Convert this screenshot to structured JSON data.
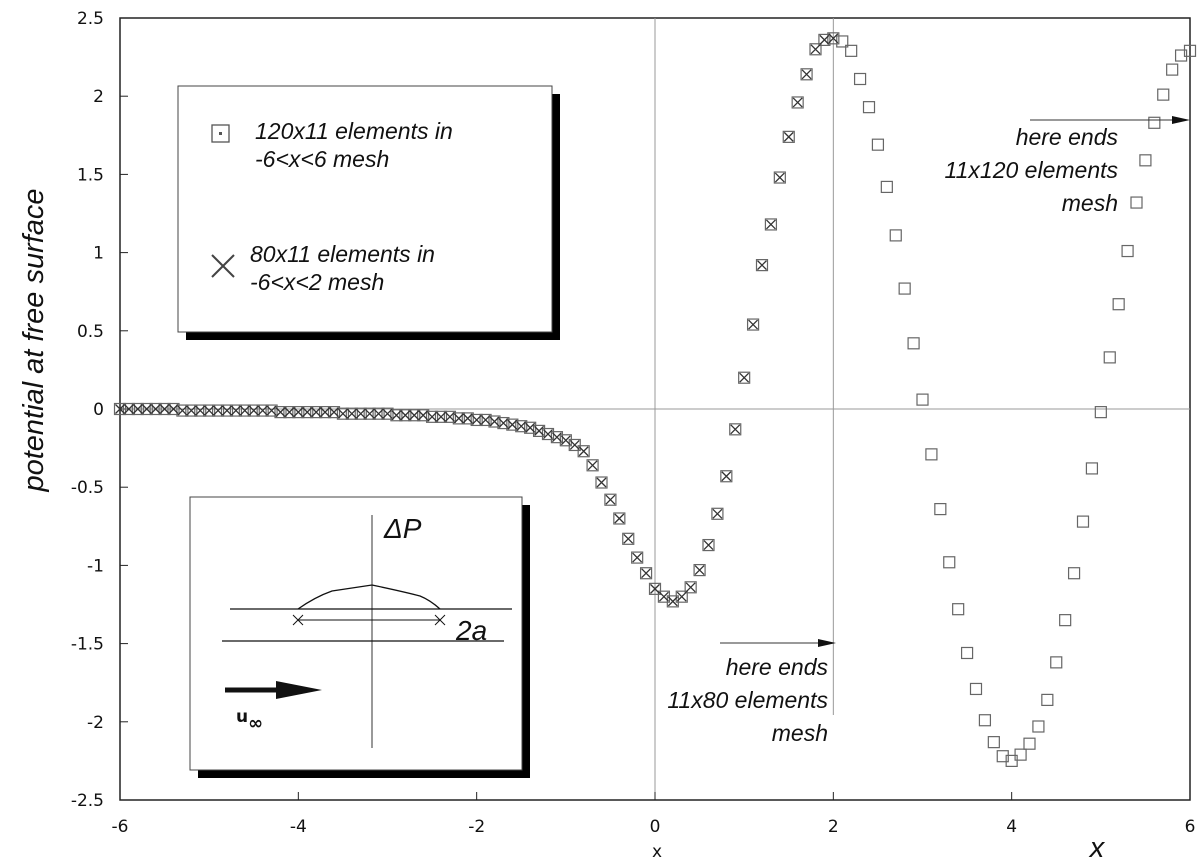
{
  "chart_data": {
    "type": "scatter",
    "ylabel": "potential at free surface",
    "xlabel_small": "x",
    "xlabel_large": "x",
    "xlim": [
      -6,
      6
    ],
    "ylim": [
      -2.5,
      2.5
    ],
    "x_ticks": [
      "-6",
      "-4",
      "-2",
      "0",
      "2",
      "4",
      "6"
    ],
    "y_ticks": [
      "2.5",
      "2",
      "1.5",
      "1",
      "0.5",
      "0",
      "-0.5",
      "-1",
      "-1.5",
      "-2",
      "-2.5"
    ],
    "grid": "reference lines at x=0 and y=0",
    "legend": {
      "placement": "top-left",
      "entries": [
        {
          "marker": "square",
          "line1": "120x11 elements in",
          "line2": "-6<x<6 mesh"
        },
        {
          "marker": "cross",
          "line1": "80x11 elements in",
          "line2": "-6<x<2 mesh"
        }
      ]
    },
    "series": [
      {
        "name": "120x11 elements in -6<x<6 mesh",
        "marker": "square",
        "x": [
          -6.0,
          -5.9,
          -5.8,
          -5.7,
          -5.6,
          -5.5,
          -5.4,
          -5.3,
          -5.2,
          -5.1,
          -5.0,
          -4.9,
          -4.8,
          -4.7,
          -4.6,
          -4.5,
          -4.4,
          -4.3,
          -4.2,
          -4.1,
          -4.0,
          -3.9,
          -3.8,
          -3.7,
          -3.6,
          -3.5,
          -3.4,
          -3.3,
          -3.2,
          -3.1,
          -3.0,
          -2.9,
          -2.8,
          -2.7,
          -2.6,
          -2.5,
          -2.4,
          -2.3,
          -2.2,
          -2.1,
          -2.0,
          -1.9,
          -1.8,
          -1.7,
          -1.6,
          -1.5,
          -1.4,
          -1.3,
          -1.2,
          -1.1,
          -1.0,
          -0.9,
          -0.8,
          -0.7,
          -0.6,
          -0.5,
          -0.4,
          -0.3,
          -0.2,
          -0.1,
          0.0,
          0.1,
          0.2,
          0.3,
          0.4,
          0.5,
          0.6,
          0.7,
          0.8,
          0.9,
          1.0,
          1.1,
          1.2,
          1.3,
          1.4,
          1.5,
          1.6,
          1.7,
          1.8,
          1.9,
          2.0,
          2.1,
          2.2,
          2.3,
          2.4,
          2.5,
          2.6,
          2.7,
          2.8,
          2.9,
          3.0,
          3.1,
          3.2,
          3.3,
          3.4,
          3.5,
          3.6,
          3.7,
          3.8,
          3.9,
          4.0,
          4.1,
          4.2,
          4.3,
          4.4,
          4.5,
          4.6,
          4.7,
          4.8,
          4.9,
          5.0,
          5.1,
          5.2,
          5.3,
          5.4,
          5.5,
          5.6,
          5.7,
          5.8,
          5.9,
          6.0
        ],
        "y": [
          0.0,
          0.0,
          0.0,
          0.0,
          0.0,
          0.0,
          0.0,
          -0.01,
          -0.01,
          -0.01,
          -0.01,
          -0.01,
          -0.01,
          -0.01,
          -0.01,
          -0.01,
          -0.01,
          -0.01,
          -0.02,
          -0.02,
          -0.02,
          -0.02,
          -0.02,
          -0.02,
          -0.02,
          -0.03,
          -0.03,
          -0.03,
          -0.03,
          -0.03,
          -0.03,
          -0.04,
          -0.04,
          -0.04,
          -0.04,
          -0.05,
          -0.05,
          -0.05,
          -0.06,
          -0.06,
          -0.07,
          -0.07,
          -0.08,
          -0.09,
          -0.1,
          -0.11,
          -0.12,
          -0.14,
          -0.16,
          -0.18,
          -0.2,
          -0.23,
          -0.27,
          -0.36,
          -0.47,
          -0.58,
          -0.7,
          -0.83,
          -0.95,
          -1.05,
          -1.15,
          -1.2,
          -1.23,
          -1.2,
          -1.14,
          -1.03,
          -0.87,
          -0.67,
          -0.43,
          -0.13,
          0.2,
          0.54,
          0.92,
          1.18,
          1.48,
          1.74,
          1.96,
          2.14,
          2.3,
          2.36,
          2.37,
          2.35,
          2.29,
          2.11,
          1.93,
          1.69,
          1.42,
          1.11,
          0.77,
          0.42,
          0.06,
          -0.29,
          -0.64,
          -0.98,
          -1.28,
          -1.56,
          -1.79,
          -1.99,
          -2.13,
          -2.22,
          -2.25,
          -2.21,
          -2.14,
          -2.03,
          -1.86,
          -1.62,
          -1.35,
          -1.05,
          -0.72,
          -0.38,
          -0.02,
          0.33,
          0.67,
          1.01,
          1.32,
          1.59,
          1.83,
          2.01,
          2.17,
          2.26,
          2.29
        ]
      },
      {
        "name": "80x11 elements in -6<x<2 mesh",
        "marker": "cross",
        "x": [
          -6.0,
          -5.9,
          -5.8,
          -5.7,
          -5.6,
          -5.5,
          -5.4,
          -5.3,
          -5.2,
          -5.1,
          -5.0,
          -4.9,
          -4.8,
          -4.7,
          -4.6,
          -4.5,
          -4.4,
          -4.3,
          -4.2,
          -4.1,
          -4.0,
          -3.9,
          -3.8,
          -3.7,
          -3.6,
          -3.5,
          -3.4,
          -3.3,
          -3.2,
          -3.1,
          -3.0,
          -2.9,
          -2.8,
          -2.7,
          -2.6,
          -2.5,
          -2.4,
          -2.3,
          -2.2,
          -2.1,
          -2.0,
          -1.9,
          -1.8,
          -1.7,
          -1.6,
          -1.5,
          -1.4,
          -1.3,
          -1.2,
          -1.1,
          -1.0,
          -0.9,
          -0.8,
          -0.7,
          -0.6,
          -0.5,
          -0.4,
          -0.3,
          -0.2,
          -0.1,
          0.0,
          0.1,
          0.2,
          0.3,
          0.4,
          0.5,
          0.6,
          0.7,
          0.8,
          0.9,
          1.0,
          1.1,
          1.2,
          1.3,
          1.4,
          1.5,
          1.6,
          1.7,
          1.8,
          1.9,
          2.0
        ],
        "y": [
          0.0,
          0.0,
          0.0,
          0.0,
          0.0,
          0.0,
          0.0,
          -0.01,
          -0.01,
          -0.01,
          -0.01,
          -0.01,
          -0.01,
          -0.01,
          -0.01,
          -0.01,
          -0.01,
          -0.01,
          -0.02,
          -0.02,
          -0.02,
          -0.02,
          -0.02,
          -0.02,
          -0.02,
          -0.03,
          -0.03,
          -0.03,
          -0.03,
          -0.03,
          -0.03,
          -0.04,
          -0.04,
          -0.04,
          -0.04,
          -0.05,
          -0.05,
          -0.05,
          -0.06,
          -0.06,
          -0.07,
          -0.07,
          -0.08,
          -0.09,
          -0.1,
          -0.11,
          -0.12,
          -0.14,
          -0.16,
          -0.18,
          -0.2,
          -0.23,
          -0.27,
          -0.36,
          -0.47,
          -0.58,
          -0.7,
          -0.83,
          -0.95,
          -1.05,
          -1.15,
          -1.2,
          -1.23,
          -1.2,
          -1.14,
          -1.03,
          -0.87,
          -0.67,
          -0.43,
          -0.13,
          0.2,
          0.54,
          0.92,
          1.18,
          1.48,
          1.74,
          1.96,
          2.14,
          2.3,
          2.36,
          2.37
        ]
      }
    ],
    "annotations": [
      {
        "id": "end120",
        "lines": [
          "here ends",
          "11x120 elements",
          "mesh"
        ]
      },
      {
        "id": "end80",
        "lines": [
          "here ends",
          "11x80 elements",
          "mesh"
        ]
      }
    ],
    "inset": {
      "delta_label": "ΔP",
      "width_label": "2a",
      "velocity_label": "u",
      "velocity_subscript": "∞"
    }
  }
}
